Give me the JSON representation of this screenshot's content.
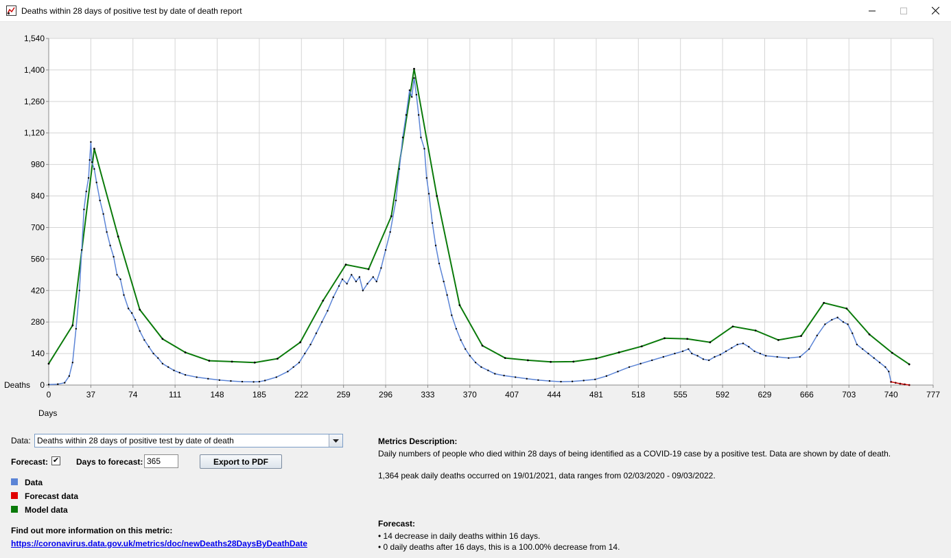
{
  "window": {
    "title": "Deaths within 28 days of positive test by date of death report"
  },
  "chart_data": {
    "type": "line",
    "ylabel": "Deaths",
    "xlabel": "Days",
    "ylim": [
      0,
      1540
    ],
    "xlim": [
      0,
      777
    ],
    "yticks": [
      "0",
      "140",
      "280",
      "420",
      "560",
      "700",
      "840",
      "980",
      "1,120",
      "1,260",
      "1,400",
      "1,540"
    ],
    "xticks": [
      "0",
      "37",
      "74",
      "111",
      "148",
      "185",
      "222",
      "259",
      "296",
      "333",
      "370",
      "407",
      "444",
      "481",
      "518",
      "555",
      "592",
      "629",
      "666",
      "703",
      "740",
      "777"
    ],
    "grid": true,
    "series": [
      {
        "name": "Data",
        "color": "#5b84d6",
        "points": [
          [
            0,
            2
          ],
          [
            8,
            4
          ],
          [
            14,
            10
          ],
          [
            18,
            40
          ],
          [
            21,
            100
          ],
          [
            24,
            250
          ],
          [
            27,
            420
          ],
          [
            29,
            600
          ],
          [
            31,
            780
          ],
          [
            33,
            860
          ],
          [
            35,
            920
          ],
          [
            36,
            1000
          ],
          [
            37,
            1080
          ],
          [
            38,
            990
          ],
          [
            40,
            960
          ],
          [
            42,
            900
          ],
          [
            45,
            820
          ],
          [
            48,
            760
          ],
          [
            51,
            680
          ],
          [
            54,
            620
          ],
          [
            57,
            570
          ],
          [
            60,
            490
          ],
          [
            63,
            470
          ],
          [
            66,
            400
          ],
          [
            70,
            340
          ],
          [
            73,
            320
          ],
          [
            76,
            290
          ],
          [
            80,
            240
          ],
          [
            84,
            200
          ],
          [
            88,
            170
          ],
          [
            92,
            140
          ],
          [
            96,
            120
          ],
          [
            100,
            95
          ],
          [
            105,
            80
          ],
          [
            110,
            65
          ],
          [
            115,
            55
          ],
          [
            120,
            45
          ],
          [
            130,
            35
          ],
          [
            140,
            28
          ],
          [
            150,
            22
          ],
          [
            160,
            18
          ],
          [
            170,
            15
          ],
          [
            180,
            14
          ],
          [
            185,
            15
          ],
          [
            190,
            20
          ],
          [
            200,
            35
          ],
          [
            210,
            60
          ],
          [
            215,
            80
          ],
          [
            220,
            100
          ],
          [
            225,
            140
          ],
          [
            230,
            180
          ],
          [
            235,
            230
          ],
          [
            240,
            280
          ],
          [
            245,
            330
          ],
          [
            250,
            390
          ],
          [
            255,
            440
          ],
          [
            258,
            470
          ],
          [
            262,
            450
          ],
          [
            266,
            490
          ],
          [
            270,
            460
          ],
          [
            273,
            480
          ],
          [
            276,
            420
          ],
          [
            280,
            450
          ],
          [
            285,
            480
          ],
          [
            288,
            460
          ],
          [
            292,
            520
          ],
          [
            296,
            600
          ],
          [
            300,
            680
          ],
          [
            305,
            820
          ],
          [
            308,
            960
          ],
          [
            311,
            1100
          ],
          [
            314,
            1200
          ],
          [
            317,
            1310
          ],
          [
            319,
            1280
          ],
          [
            321,
            1364
          ],
          [
            323,
            1290
          ],
          [
            325,
            1200
          ],
          [
            327,
            1100
          ],
          [
            330,
            1050
          ],
          [
            332,
            920
          ],
          [
            334,
            850
          ],
          [
            337,
            720
          ],
          [
            340,
            620
          ],
          [
            343,
            540
          ],
          [
            347,
            460
          ],
          [
            350,
            400
          ],
          [
            354,
            310
          ],
          [
            358,
            250
          ],
          [
            362,
            200
          ],
          [
            366,
            160
          ],
          [
            370,
            130
          ],
          [
            375,
            100
          ],
          [
            380,
            80
          ],
          [
            386,
            65
          ],
          [
            392,
            50
          ],
          [
            400,
            42
          ],
          [
            410,
            35
          ],
          [
            420,
            28
          ],
          [
            430,
            22
          ],
          [
            440,
            18
          ],
          [
            450,
            15
          ],
          [
            460,
            16
          ],
          [
            470,
            20
          ],
          [
            480,
            25
          ],
          [
            490,
            40
          ],
          [
            500,
            60
          ],
          [
            510,
            80
          ],
          [
            520,
            95
          ],
          [
            530,
            110
          ],
          [
            540,
            125
          ],
          [
            550,
            140
          ],
          [
            557,
            150
          ],
          [
            562,
            160
          ],
          [
            565,
            140
          ],
          [
            570,
            130
          ],
          [
            575,
            115
          ],
          [
            580,
            110
          ],
          [
            585,
            125
          ],
          [
            590,
            135
          ],
          [
            595,
            150
          ],
          [
            600,
            165
          ],
          [
            605,
            180
          ],
          [
            610,
            185
          ],
          [
            615,
            170
          ],
          [
            620,
            150
          ],
          [
            625,
            140
          ],
          [
            630,
            130
          ],
          [
            640,
            125
          ],
          [
            650,
            120
          ],
          [
            660,
            125
          ],
          [
            668,
            160
          ],
          [
            675,
            220
          ],
          [
            682,
            270
          ],
          [
            688,
            290
          ],
          [
            693,
            300
          ],
          [
            698,
            280
          ],
          [
            702,
            270
          ],
          [
            706,
            230
          ],
          [
            710,
            180
          ],
          [
            715,
            160
          ],
          [
            720,
            140
          ],
          [
            725,
            120
          ],
          [
            730,
            100
          ],
          [
            735,
            80
          ],
          [
            738,
            60
          ],
          [
            740,
            14
          ]
        ]
      },
      {
        "name": "Forecast data",
        "color": "#d40000",
        "points": [
          [
            740,
            14
          ],
          [
            744,
            10
          ],
          [
            748,
            6
          ],
          [
            752,
            3
          ],
          [
            756,
            0
          ]
        ]
      },
      {
        "name": "Model data",
        "color": "#0a7a0a",
        "points": [
          [
            0,
            95
          ],
          [
            21,
            265
          ],
          [
            40,
            1050
          ],
          [
            61,
            660
          ],
          [
            80,
            335
          ],
          [
            100,
            205
          ],
          [
            120,
            145
          ],
          [
            141,
            108
          ],
          [
            161,
            104
          ],
          [
            181,
            100
          ],
          [
            201,
            117
          ],
          [
            221,
            190
          ],
          [
            241,
            375
          ],
          [
            261,
            535
          ],
          [
            281,
            515
          ],
          [
            301,
            750
          ],
          [
            321,
            1405
          ],
          [
            341,
            840
          ],
          [
            361,
            355
          ],
          [
            381,
            175
          ],
          [
            401,
            120
          ],
          [
            421,
            110
          ],
          [
            441,
            103
          ],
          [
            461,
            104
          ],
          [
            481,
            118
          ],
          [
            501,
            145
          ],
          [
            521,
            172
          ],
          [
            541,
            208
          ],
          [
            561,
            205
          ],
          [
            581,
            190
          ],
          [
            601,
            260
          ],
          [
            621,
            242
          ],
          [
            641,
            200
          ],
          [
            661,
            218
          ],
          [
            681,
            365
          ],
          [
            701,
            340
          ],
          [
            721,
            225
          ],
          [
            741,
            143
          ],
          [
            756,
            92
          ]
        ]
      }
    ]
  },
  "controls": {
    "data_label": "Data:",
    "data_selected": "Deaths within 28 days of positive test by date of death",
    "forecast_label": "Forecast:",
    "forecast_checked": "✔",
    "days_label": "Days to forecast:",
    "days_value": "365",
    "export_label": "Export to PDF"
  },
  "legend": {
    "items": [
      {
        "label": "Data",
        "color": "#5b84d6"
      },
      {
        "label": "Forecast data",
        "color": "#e00000"
      },
      {
        "label": "Model data",
        "color": "#0a7a0a"
      }
    ]
  },
  "info": {
    "heading": "Find out more information on this metric:",
    "link": "https://coronavirus.data.gov.uk/metrics/doc/newDeaths28DaysByDeathDate"
  },
  "metrics": {
    "heading": "Metrics Description:",
    "line1": "Daily numbers of people who died within 28 days of being identified as a COVID-19 case by a positive test. Data are shown by date of death.",
    "line2": "1,364 peak daily deaths occurred on 19/01/2021, data ranges from 02/03/2020 - 09/03/2022."
  },
  "forecast": {
    "heading": "Forecast:",
    "bullet1": "• 14 decrease in daily deaths within 16 days.",
    "bullet2": "• 0 daily deaths after 16 days, this is a 100.00% decrease from 14."
  }
}
